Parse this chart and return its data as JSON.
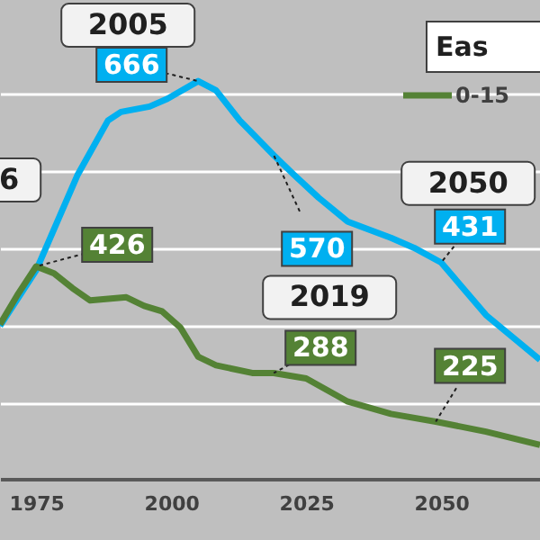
{
  "chart_data": {
    "type": "line",
    "legend_title": "Eas",
    "legend": "top right",
    "grid": "y",
    "tick_labels": "x",
    "xlim": [
      1968.3,
      2068.3
    ],
    "xticks": [
      1975,
      2000,
      2025,
      2050
    ],
    "ylim": [
      151,
      771
    ],
    "yticks": [
      {
        "value": 250,
        "label": null
      },
      {
        "value": 350,
        "label": null
      },
      {
        "value": 450,
        "label": null
      },
      {
        "value": 550,
        "label": null
      },
      {
        "value": 650,
        "label": null
      }
    ],
    "series": [
      {
        "color": "#00b0f0",
        "x": [
          1968.3,
          1975,
          1982.7,
          1988.3,
          1990.7,
          1996,
          1999.3,
          2005,
          2008.3,
          2012.7,
          2019,
          2022.7,
          2027.3,
          2032.7,
          2040.7,
          2045,
          2050,
          2058.3,
          2068.3
        ],
        "values": [
          349,
          421,
          545,
          615,
          626,
          633,
          643,
          666,
          654,
          615,
          570,
          545,
          515,
          484,
          463,
          450,
          431,
          363,
          305
        ],
        "value_labels": [
          null,
          null,
          null,
          null,
          null,
          null,
          null,
          "666",
          null,
          null,
          "570",
          null,
          null,
          null,
          null,
          null,
          "431",
          null,
          null
        ]
      },
      {
        "name": "0-15",
        "color": "#548235",
        "x": [
          1968.3,
          1971.7,
          1975,
          1978.3,
          1981.7,
          1985,
          1991.7,
          1995,
          1998.3,
          2001.7,
          2005,
          2008.3,
          2015,
          2019,
          2025,
          2032.7,
          2040.7,
          2049,
          2058.3,
          2068.3
        ],
        "values": [
          351,
          391,
          426,
          417,
          398,
          382,
          386,
          375,
          368,
          347,
          309,
          298,
          288,
          288,
          281,
          251,
          235,
          225,
          212,
          195
        ],
        "value_labels": [
          null,
          null,
          "426",
          null,
          null,
          null,
          null,
          null,
          null,
          null,
          null,
          null,
          null,
          "288",
          null,
          null,
          null,
          "225",
          null,
          null
        ]
      }
    ],
    "annotations": [
      {
        "text": "6",
        "x": 1975,
        "y": 426
      },
      {
        "text": "2005",
        "x": 2005,
        "y": 666
      },
      {
        "text": "2019",
        "x": 2019,
        "y": 288
      },
      {
        "text": "2050",
        "x": 2050,
        "y": 431
      }
    ]
  }
}
